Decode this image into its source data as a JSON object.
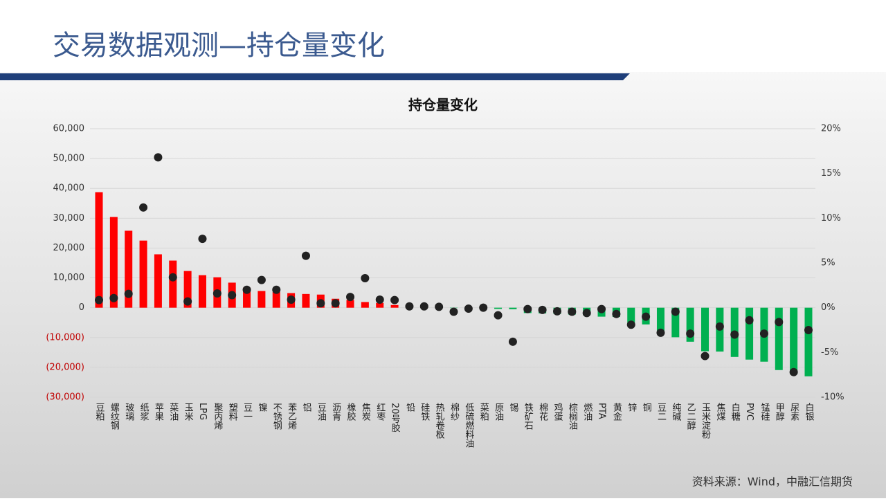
{
  "header": {
    "title": "交易数据观测—持仓量变化"
  },
  "footer": {
    "source": "资料来源：Wind，中融汇信期货"
  },
  "chart_data": {
    "type": "bar",
    "title": "持仓量变化",
    "categories": [
      "豆粕",
      "螺纹钢",
      "玻璃",
      "纸浆",
      "苹果",
      "菜油",
      "玉米",
      "LPG",
      "聚丙烯",
      "塑料",
      "豆一",
      "镍",
      "不锈钢",
      "苯乙烯",
      "铝",
      "豆油",
      "沥青",
      "橡胶",
      "焦炭",
      "红枣",
      "20号胶",
      "铅",
      "硅铁",
      "热轧卷板",
      "棉纱",
      "低硫燃料油",
      "菜粕",
      "原油",
      "锡",
      "铁矿石",
      "棉花",
      "鸡蛋",
      "棕榈油",
      "燃油",
      "PTA",
      "黄金",
      "锌",
      "铜",
      "豆二",
      "纯碱",
      "乙二醇",
      "玉米淀粉",
      "焦煤",
      "白糖",
      "PVC",
      "锰硅",
      "甲醇",
      "尿素",
      "白银"
    ],
    "series": [
      {
        "type": "bar",
        "color": "#ff0000",
        "negative_color": "#00b050",
        "values": [
          38700,
          30400,
          25800,
          22500,
          17900,
          15800,
          12300,
          10900,
          10200,
          8400,
          6700,
          5600,
          5300,
          4900,
          4600,
          4400,
          3000,
          2600,
          1900,
          1600,
          900,
          700,
          400,
          200,
          -100,
          -200,
          -300,
          -400,
          -500,
          -1800,
          -1900,
          -2100,
          -2300,
          -2500,
          -3000,
          -3100,
          -5100,
          -5600,
          -7700,
          -9900,
          -11400,
          -14600,
          -14700,
          -16500,
          -17400,
          -18100,
          -20900,
          -22300,
          -23000
        ]
      },
      {
        "type": "scatter",
        "axis": "y2",
        "color": "#222222",
        "values": [
          0.85,
          1.08,
          1.55,
          11.2,
          16.8,
          3.4,
          0.7,
          7.7,
          1.6,
          1.4,
          2.0,
          3.1,
          2.0,
          0.9,
          5.8,
          0.5,
          0.5,
          1.2,
          3.3,
          0.9,
          0.85,
          0.15,
          0.15,
          0.1,
          -0.45,
          -0.1,
          0,
          -0.85,
          -3.8,
          -0.15,
          -0.25,
          -0.4,
          -0.45,
          -0.6,
          -0.15,
          -0.7,
          -1.9,
          -1.0,
          -2.8,
          -0.45,
          -2.9,
          -5.4,
          -2.1,
          -3.0,
          -1.4,
          -2.9,
          -1.6,
          -7.2,
          -2.5
        ]
      }
    ],
    "ylim": [
      -30000,
      60000
    ],
    "yticks": [
      {
        "value": 60000,
        "label": "60,000"
      },
      {
        "value": 50000,
        "label": "50,000"
      },
      {
        "value": 40000,
        "label": "40,000"
      },
      {
        "value": 30000,
        "label": "30,000"
      },
      {
        "value": 20000,
        "label": "20,000"
      },
      {
        "value": 10000,
        "label": "10,000"
      },
      0,
      {
        "value": -10000,
        "label": "(10,000)"
      },
      {
        "value": -20000,
        "label": "(20,000)"
      },
      {
        "value": -30000,
        "label": "(30,000)"
      }
    ],
    "negative_tick_color": "#c00000",
    "y2lim": [
      -10,
      20
    ],
    "y2ticks": [
      {
        "value": 20,
        "label": "20%"
      },
      {
        "value": 15,
        "label": "15%"
      },
      {
        "value": 10,
        "label": "10%"
      },
      {
        "value": 5,
        "label": "5%"
      },
      {
        "value": 0,
        "label": "0%"
      },
      {
        "value": -5,
        "label": "-5%"
      },
      {
        "value": -10,
        "label": "-10%"
      }
    ],
    "grid": true
  }
}
